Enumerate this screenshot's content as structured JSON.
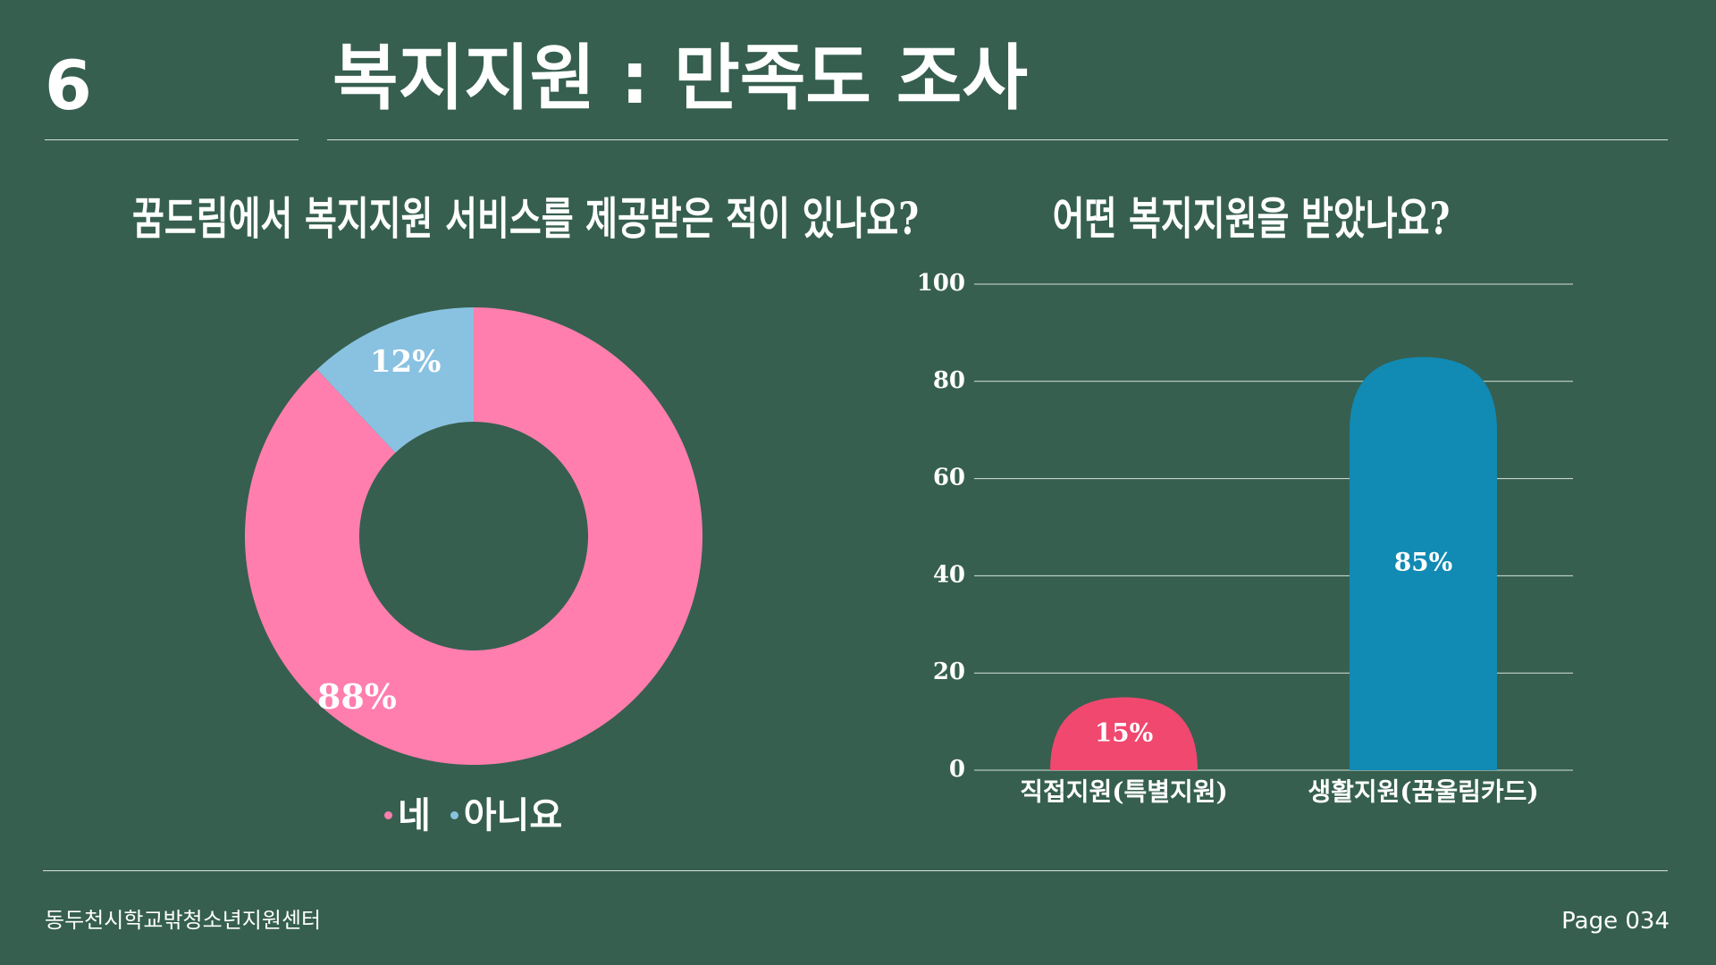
{
  "slide": {
    "number": "6",
    "title": "복지지원 : 만족도 조사"
  },
  "footer": {
    "organization": "동두천시학교밖청소년지원센터",
    "page": "Page 034"
  },
  "colors": {
    "background": "#365F4F",
    "pink": "#FF7EAD",
    "light_blue": "#89C2E1",
    "red_pink": "#F0486F",
    "blue": "#118AB4"
  },
  "chart_data": [
    {
      "type": "pie",
      "title": "꿈드림에서 복지지원 서비스를 제공받은 적이 있나요?",
      "categories": [
        "네",
        "아니요"
      ],
      "values": [
        88,
        12
      ],
      "labels": [
        "88%",
        "12%"
      ],
      "colors": [
        "#FF7EAD",
        "#89C2E1"
      ],
      "legend": "bottom"
    },
    {
      "type": "bar",
      "title": "어떤 복지지원을 받았나요?",
      "categories": [
        "직접지원(특별지원)",
        "생활지원(꿈울림카드)"
      ],
      "values": [
        15,
        85
      ],
      "labels": [
        "15%",
        "85%"
      ],
      "colors": [
        "#F0486F",
        "#118AB4"
      ],
      "ylim": [
        0,
        100
      ],
      "yticks": [
        "0",
        "20",
        "40",
        "60",
        "80",
        "100"
      ],
      "grid": true
    }
  ]
}
